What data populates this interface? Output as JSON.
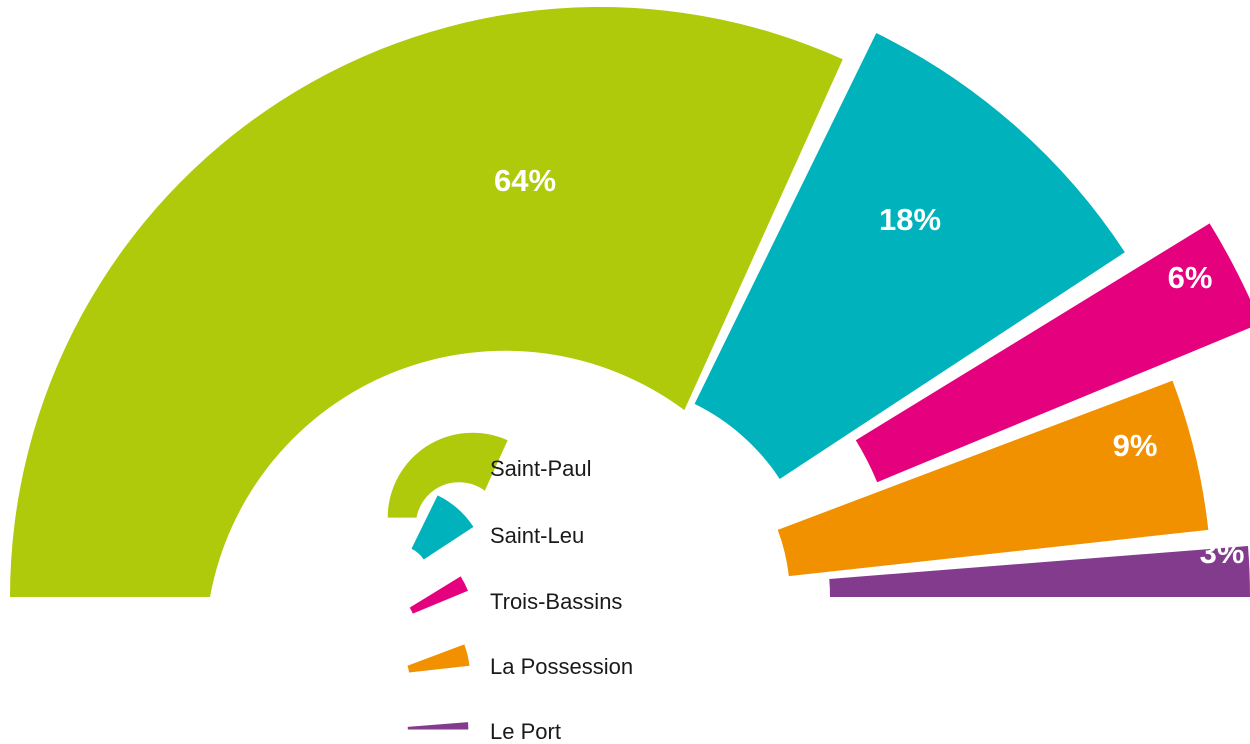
{
  "chart_data": {
    "type": "semi-donut",
    "categories": [
      "Saint-Paul",
      "Saint-Leu",
      "Trois-Bassins",
      "La Possession",
      "Le Port"
    ],
    "values": [
      64,
      18,
      6,
      9,
      3
    ],
    "value_labels": [
      "64%",
      "18%",
      "6%",
      "9%",
      "3%"
    ],
    "colors": [
      "#afca0b",
      "#00b2bb",
      "#e5007e",
      "#f29100",
      "#833b8e"
    ]
  }
}
